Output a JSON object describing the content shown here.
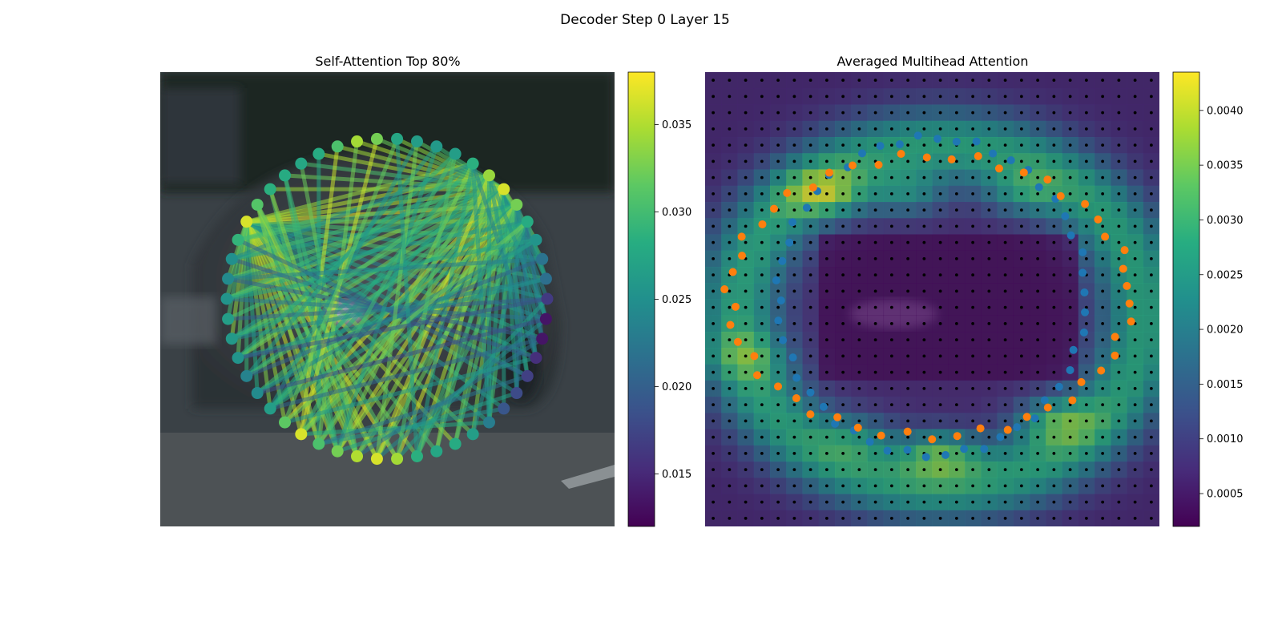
{
  "figure": {
    "suptitle": "Decoder Step 0 Layer 15"
  },
  "chart_data": [
    {
      "type": "scatter",
      "title": "Self-Attention Top 80%",
      "background": "blurred photo of a dark car on a road",
      "node_count": 50,
      "node_layout": "circle",
      "colormap": "viridis",
      "colorbar": {
        "range": [
          0.012,
          0.038
        ],
        "ticks": [
          "0.015",
          "0.020",
          "0.025",
          "0.030",
          "0.035"
        ],
        "tick_values": [
          0.015,
          0.02,
          0.025,
          0.03,
          0.035
        ]
      },
      "node_values": [
        0.0325,
        0.0345,
        0.0305,
        0.028,
        0.0275,
        0.028,
        0.0285,
        0.031,
        0.0365,
        0.029,
        0.025,
        0.0245,
        0.0255,
        0.0265,
        0.026,
        0.0255,
        0.0235,
        0.0245,
        0.0265,
        0.0315,
        0.0365,
        0.0305,
        0.0325,
        0.035,
        0.0365,
        0.0345,
        0.0285,
        0.0275,
        0.028,
        0.0265,
        0.023,
        0.019,
        0.018,
        0.017,
        0.0155,
        0.0135,
        0.0135,
        0.0165,
        0.0215,
        0.022,
        0.0255,
        0.028,
        0.0325,
        0.0365,
        0.034,
        0.0285,
        0.0265,
        0.026,
        0.0265,
        0.0275
      ],
      "edges": [
        [
          8,
          30
        ],
        [
          8,
          31
        ],
        [
          8,
          29
        ],
        [
          8,
          28
        ],
        [
          8,
          27
        ],
        [
          8,
          26
        ],
        [
          8,
          25
        ],
        [
          8,
          24
        ],
        [
          8,
          23
        ],
        [
          8,
          22
        ],
        [
          8,
          21
        ],
        [
          8,
          20
        ],
        [
          8,
          19
        ],
        [
          8,
          18
        ],
        [
          8,
          17
        ],
        [
          8,
          16
        ],
        [
          8,
          15
        ],
        [
          8,
          14
        ],
        [
          8,
          13
        ],
        [
          8,
          12
        ],
        [
          8,
          11
        ],
        [
          8,
          32
        ],
        [
          8,
          33
        ],
        [
          8,
          34
        ],
        [
          8,
          35
        ],
        [
          8,
          36
        ],
        [
          8,
          37
        ],
        [
          8,
          38
        ],
        [
          8,
          39
        ],
        [
          8,
          40
        ],
        [
          8,
          41
        ],
        [
          8,
          42
        ],
        [
          8,
          43
        ],
        [
          8,
          44
        ],
        [
          8,
          45
        ],
        [
          43,
          9
        ],
        [
          43,
          10
        ],
        [
          43,
          11
        ],
        [
          43,
          12
        ],
        [
          43,
          13
        ],
        [
          43,
          14
        ],
        [
          43,
          15
        ],
        [
          43,
          16
        ],
        [
          43,
          17
        ],
        [
          43,
          18
        ],
        [
          43,
          19
        ],
        [
          43,
          20
        ],
        [
          43,
          21
        ],
        [
          43,
          22
        ],
        [
          43,
          23
        ],
        [
          43,
          24
        ],
        [
          43,
          25
        ],
        [
          43,
          26
        ],
        [
          43,
          27
        ],
        [
          43,
          28
        ],
        [
          43,
          29
        ],
        [
          43,
          30
        ],
        [
          43,
          31
        ],
        [
          43,
          32
        ],
        [
          43,
          33
        ],
        [
          43,
          34
        ],
        [
          43,
          35
        ],
        [
          43,
          36
        ],
        [
          43,
          37
        ],
        [
          43,
          38
        ],
        [
          43,
          39
        ],
        [
          43,
          40
        ],
        [
          43,
          47
        ],
        [
          43,
          48
        ],
        [
          43,
          49
        ],
        [
          43,
          0
        ],
        [
          43,
          1
        ],
        [
          43,
          2
        ],
        [
          43,
          3
        ],
        [
          43,
          4
        ],
        [
          43,
          5
        ],
        [
          43,
          6
        ],
        [
          42,
          10
        ],
        [
          42,
          12
        ],
        [
          42,
          14
        ],
        [
          42,
          16
        ],
        [
          42,
          18
        ],
        [
          42,
          20
        ],
        [
          42,
          22
        ],
        [
          42,
          24
        ],
        [
          42,
          26
        ],
        [
          42,
          28
        ],
        [
          42,
          30
        ],
        [
          42,
          32
        ],
        [
          42,
          34
        ],
        [
          42,
          36
        ],
        [
          42,
          38
        ],
        [
          41,
          11
        ],
        [
          41,
          14
        ],
        [
          41,
          17
        ],
        [
          41,
          20
        ],
        [
          41,
          23
        ],
        [
          41,
          26
        ],
        [
          41,
          29
        ],
        [
          41,
          32
        ],
        [
          41,
          35
        ],
        [
          41,
          38
        ],
        [
          44,
          9
        ],
        [
          44,
          12
        ],
        [
          44,
          15
        ],
        [
          44,
          18
        ],
        [
          44,
          21
        ],
        [
          44,
          24
        ],
        [
          44,
          27
        ],
        [
          44,
          30
        ],
        [
          44,
          33
        ],
        [
          44,
          36
        ],
        [
          45,
          10
        ],
        [
          45,
          14
        ],
        [
          45,
          18
        ],
        [
          45,
          22
        ],
        [
          45,
          26
        ],
        [
          45,
          30
        ],
        [
          45,
          34
        ],
        [
          7,
          22
        ],
        [
          7,
          23
        ],
        [
          7,
          24
        ],
        [
          7,
          21
        ],
        [
          7,
          25
        ],
        [
          6,
          22
        ],
        [
          6,
          23
        ],
        [
          5,
          23
        ],
        [
          5,
          22
        ],
        [
          4,
          23
        ],
        [
          2,
          20
        ],
        [
          3,
          21
        ],
        [
          1,
          21
        ],
        [
          0,
          20
        ],
        [
          9,
          33
        ],
        [
          10,
          34
        ],
        [
          11,
          35
        ],
        [
          12,
          36
        ],
        [
          13,
          37
        ],
        [
          14,
          38
        ],
        [
          15,
          38
        ],
        [
          16,
          39
        ],
        [
          17,
          40
        ],
        [
          18,
          40
        ],
        [
          19,
          41
        ],
        [
          20,
          30
        ],
        [
          21,
          31
        ],
        [
          22,
          32
        ],
        [
          23,
          35
        ],
        [
          24,
          36
        ],
        [
          25,
          37
        ],
        [
          46,
          15
        ],
        [
          46,
          20
        ],
        [
          46,
          25
        ],
        [
          47,
          16
        ],
        [
          47,
          22
        ],
        [
          48,
          18
        ],
        [
          48,
          24
        ],
        [
          49,
          19
        ],
        [
          49,
          26
        ],
        [
          39,
          11
        ],
        [
          40,
          12
        ],
        [
          37,
          15
        ],
        [
          36,
          17
        ],
        [
          35,
          18
        ],
        [
          34,
          19
        ],
        [
          33,
          21
        ]
      ]
    },
    {
      "type": "heatmap",
      "title": "Averaged Multihead Attention",
      "background": "same car photo, overlaid with a 28x28 attention grid",
      "grid": {
        "rows": 28,
        "cols": 28,
        "marker": "black dot at every cell"
      },
      "colormap": "viridis",
      "colorbar": {
        "range": [
          0.0002,
          0.00435
        ],
        "ticks": [
          "0.0005",
          "0.0010",
          "0.0015",
          "0.0020",
          "0.0025",
          "0.0030",
          "0.0035",
          "0.0040"
        ],
        "tick_values": [
          0.0005,
          0.001,
          0.0015,
          0.002,
          0.0025,
          0.003,
          0.0035,
          0.004
        ]
      },
      "series": [
        {
          "color": "#1f77b4",
          "point_count": 50,
          "shape": "inner ring"
        },
        {
          "color": "#ff7f0e",
          "point_count": 50,
          "shape": "outer ring"
        }
      ]
    }
  ]
}
